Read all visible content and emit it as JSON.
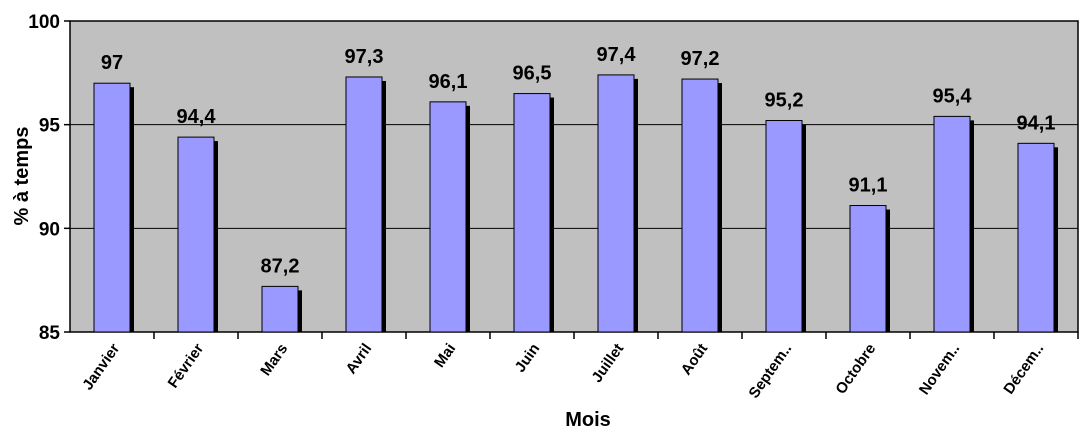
{
  "chart_data": {
    "type": "bar",
    "title": "",
    "xlabel": "Mois",
    "ylabel": "% à temps",
    "ylim": [
      85,
      100
    ],
    "yticks": [
      85,
      90,
      95,
      100
    ],
    "ytick_labels": [
      "85",
      "90",
      "95",
      "100"
    ],
    "grid": true,
    "legend": "none",
    "categories": [
      "Janvier",
      "Février",
      "Mars",
      "Avril",
      "Mai",
      "Juin",
      "Juillet",
      "Août",
      "Septem..",
      "Octobre",
      "Novem..",
      "Décem.."
    ],
    "values": [
      97,
      94.4,
      87.2,
      97.3,
      96.1,
      96.5,
      97.4,
      97.2,
      95.2,
      91.1,
      95.4,
      94.1
    ],
    "data_labels": [
      "97",
      "94,4",
      "87,2",
      "97,3",
      "96,1",
      "96,5",
      "97,4",
      "97,2",
      "95,2",
      "91,1",
      "95,4",
      "94,1"
    ],
    "colors": {
      "bar": "#9999ff",
      "bar_shadow": "#000000",
      "plot_background": "#c0c0c0",
      "gridline": "#000000"
    }
  }
}
